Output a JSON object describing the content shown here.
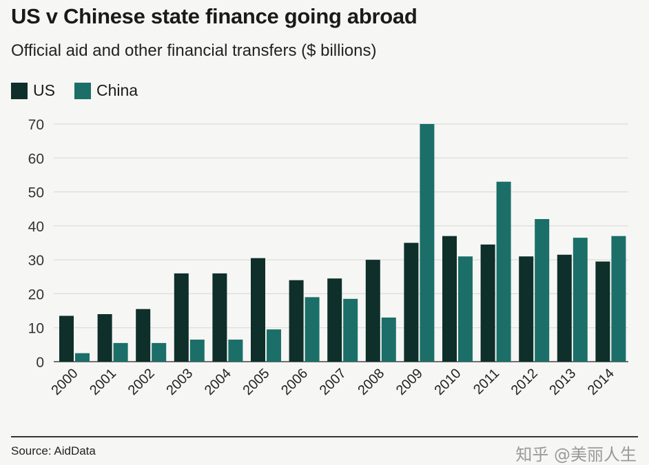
{
  "chart_data": {
    "type": "bar",
    "title": "US v Chinese state finance going abroad",
    "subtitle": "Official aid and other financial transfers ($ billions)",
    "categories": [
      "2000",
      "2001",
      "2002",
      "2003",
      "2004",
      "2005",
      "2006",
      "2007",
      "2008",
      "2009",
      "2010",
      "2011",
      "2012",
      "2013",
      "2014"
    ],
    "series": [
      {
        "name": "US",
        "color": "#0e2f2a",
        "values": [
          13.5,
          14,
          15.5,
          26,
          26,
          30.5,
          24,
          24.5,
          30,
          35,
          37,
          34.5,
          31,
          31.5,
          29.5
        ]
      },
      {
        "name": "China",
        "color": "#1b6f68",
        "values": [
          2.5,
          5.5,
          5.5,
          6.5,
          6.5,
          9.5,
          19,
          18.5,
          13,
          70,
          31,
          53,
          42,
          36.5,
          37
        ]
      }
    ],
    "ylim": [
      0,
      70
    ],
    "yticks": [
      0,
      10,
      20,
      30,
      40,
      50,
      60,
      70
    ],
    "grid": true,
    "legend": "top-left",
    "source": "Source: AidData"
  },
  "watermark": "知乎 @美丽人生"
}
